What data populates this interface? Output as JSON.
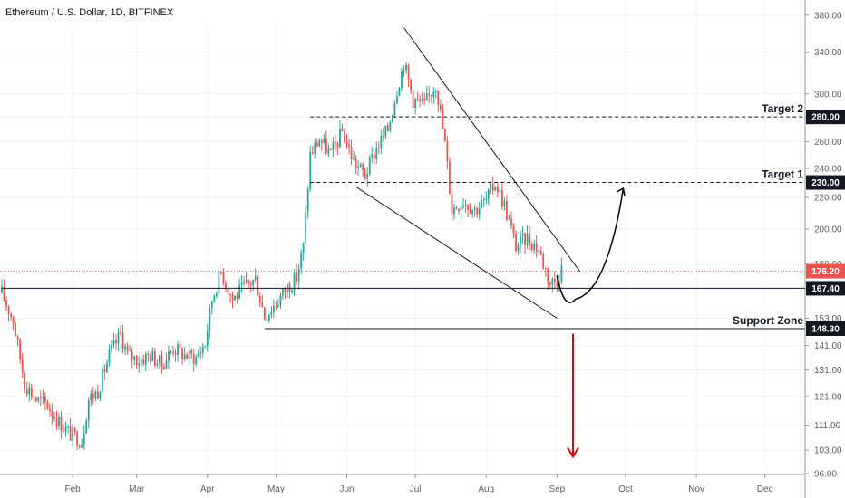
{
  "chart_data": {
    "type": "candlestick",
    "title": "Ethereum / U.S. Dollar, 1D, BITFINEX",
    "y_scale": "log",
    "ylim": [
      96,
      385
    ],
    "y_ticks": [
      380,
      340,
      300,
      280,
      260,
      240,
      220,
      200,
      180,
      167,
      153,
      141,
      131,
      121,
      111,
      103,
      96
    ],
    "y_tick_labels": [
      "380.00",
      "340.00",
      "300.00",
      "280.00",
      "260.00",
      "240.00",
      "220.00",
      "200.00",
      "180.00",
      "167.00",
      "153.00",
      "141.00",
      "131.00",
      "121.00",
      "111.00",
      "103.00",
      "96.00"
    ],
    "x_domain": [
      "2019-01-01",
      "2019-12-31"
    ],
    "x_ticks": [
      {
        "date": "2019-02-01",
        "label": "Feb"
      },
      {
        "date": "2019-03-01",
        "label": "Mar"
      },
      {
        "date": "2019-04-01",
        "label": "Apr"
      },
      {
        "date": "2019-05-01",
        "label": "May"
      },
      {
        "date": "2019-06-01",
        "label": "Jun"
      },
      {
        "date": "2019-07-01",
        "label": "Jul"
      },
      {
        "date": "2019-08-01",
        "label": "Aug"
      },
      {
        "date": "2019-09-01",
        "label": "Sep"
      },
      {
        "date": "2019-10-01",
        "label": "Oct"
      },
      {
        "date": "2019-11-01",
        "label": "Nov"
      },
      {
        "date": "2019-12-01",
        "label": "Dec"
      }
    ],
    "close_path": [
      [
        "2019-01-01",
        165
      ],
      [
        "2019-01-06",
        152
      ],
      [
        "2019-01-11",
        126
      ],
      [
        "2019-01-16",
        120
      ],
      [
        "2019-01-21",
        118
      ],
      [
        "2019-01-26",
        112
      ],
      [
        "2019-01-31",
        108
      ],
      [
        "2019-02-05",
        106
      ],
      [
        "2019-02-08",
        120
      ],
      [
        "2019-02-12",
        123
      ],
      [
        "2019-02-17",
        137
      ],
      [
        "2019-02-22",
        146
      ],
      [
        "2019-02-25",
        137
      ],
      [
        "2019-03-02",
        135
      ],
      [
        "2019-03-07",
        137
      ],
      [
        "2019-03-12",
        133
      ],
      [
        "2019-03-17",
        140
      ],
      [
        "2019-03-22",
        137
      ],
      [
        "2019-03-27",
        136
      ],
      [
        "2019-03-31",
        142
      ],
      [
        "2019-04-03",
        162
      ],
      [
        "2019-04-07",
        176
      ],
      [
        "2019-04-12",
        162
      ],
      [
        "2019-04-17",
        168
      ],
      [
        "2019-04-22",
        172
      ],
      [
        "2019-04-26",
        154
      ],
      [
        "2019-05-01",
        160
      ],
      [
        "2019-05-06",
        168
      ],
      [
        "2019-05-10",
        173
      ],
      [
        "2019-05-13",
        190
      ],
      [
        "2019-05-16",
        250
      ],
      [
        "2019-05-20",
        262
      ],
      [
        "2019-05-25",
        250
      ],
      [
        "2019-05-30",
        268
      ],
      [
        "2019-06-04",
        245
      ],
      [
        "2019-06-09",
        235
      ],
      [
        "2019-06-14",
        255
      ],
      [
        "2019-06-19",
        270
      ],
      [
        "2019-06-23",
        305
      ],
      [
        "2019-06-26",
        330
      ],
      [
        "2019-06-30",
        295
      ],
      [
        "2019-07-05",
        290
      ],
      [
        "2019-07-10",
        310
      ],
      [
        "2019-07-14",
        258
      ],
      [
        "2019-07-17",
        212
      ],
      [
        "2019-07-22",
        218
      ],
      [
        "2019-07-27",
        212
      ],
      [
        "2019-08-01",
        218
      ],
      [
        "2019-08-05",
        230
      ],
      [
        "2019-08-09",
        215
      ],
      [
        "2019-08-14",
        190
      ],
      [
        "2019-08-19",
        195
      ],
      [
        "2019-08-24",
        188
      ],
      [
        "2019-08-29",
        170
      ],
      [
        "2019-09-01",
        172
      ],
      [
        "2019-09-03",
        178
      ]
    ],
    "last_price": {
      "value": 176.2,
      "label": "176.20",
      "color": "#ef5350"
    },
    "levels": [
      {
        "name": "Target 2",
        "value": 280.0,
        "label": "280.00",
        "style": "dashed",
        "from": "2019-05-16"
      },
      {
        "name": "Target 1",
        "value": 230.0,
        "label": "230.00",
        "style": "dashed",
        "from": "2019-05-16"
      },
      {
        "name": "",
        "value": 167.4,
        "label": "167.40",
        "style": "solid",
        "from": "2019-01-01"
      },
      {
        "name": "Support Zone",
        "value": 148.3,
        "label": "148.30",
        "style": "solid",
        "from": "2019-04-26"
      }
    ],
    "trendlines": [
      {
        "name": "upper-wedge",
        "from": [
          "2019-06-26",
          366
        ],
        "to": [
          "2019-09-11",
          176
        ]
      },
      {
        "name": "lower-wedge",
        "from": [
          "2019-06-05",
          227
        ],
        "to": [
          "2019-09-01",
          153
        ]
      }
    ],
    "projection_up": {
      "start": [
        "2019-09-01",
        174
      ],
      "bottom": [
        "2019-09-09",
        162
      ],
      "end": [
        "2019-09-30",
        226
      ],
      "color": "#000000"
    },
    "projection_down": {
      "date": "2019-09-08",
      "from": 146,
      "to": 101,
      "color": "#e3000f"
    },
    "colors": {
      "up": "#26a69a",
      "down": "#ef5350",
      "grid": "#f0f3fa",
      "axis": "#9598a1",
      "badge_bg": "#131722"
    }
  }
}
